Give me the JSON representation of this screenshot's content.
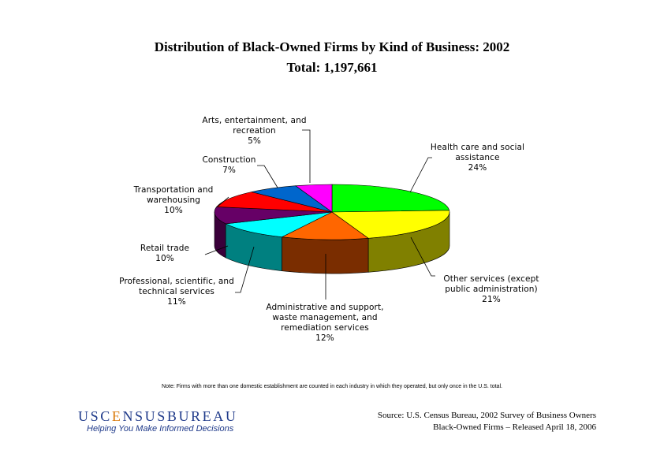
{
  "title_line1": "Distribution of Black-Owned Firms by Kind of Business: 2002",
  "title_line2": "Total:  1,197,661",
  "chart_data": {
    "type": "pie",
    "title": "Distribution of Black-Owned Firms by Kind of Business: 2002",
    "subtitle": "Total:  1,197,661",
    "slices": [
      {
        "label": "Health care and social assistance",
        "value": 24,
        "value_label": "24%",
        "color": "#00ff00",
        "side_color": "#00b000"
      },
      {
        "label": "Other services (except public administration)",
        "value": 21,
        "value_label": "21%",
        "color": "#ffff00",
        "side_color": "#808000"
      },
      {
        "label": "Administrative and support, waste management, and remediation services",
        "value": 12,
        "value_label": "12%",
        "color": "#ff6600",
        "side_color": "#7a2d00"
      },
      {
        "label": "Professional, scientific, and technical services",
        "value": 11,
        "value_label": "11%",
        "color": "#00ffff",
        "side_color": "#008080"
      },
      {
        "label": "Retail trade",
        "value": 10,
        "value_label": "10%",
        "color": "#660066",
        "side_color": "#3a003a"
      },
      {
        "label": "Transportation and warehousing",
        "value": 10,
        "value_label": "10%",
        "color": "#ff0000",
        "side_color": "#880000"
      },
      {
        "label": "Construction",
        "value": 7,
        "value_label": "7%",
        "color": "#0066cc",
        "side_color": "#003366"
      },
      {
        "label": "Arts, entertainment, and recreation",
        "value": 5,
        "value_label": "5%",
        "color": "#ff00ff",
        "side_color": "#880088"
      }
    ],
    "label_lines": [
      [
        "Health care and social",
        "assistance"
      ],
      [
        "Other services (except",
        "public administration)"
      ],
      [
        "Administrative and support,",
        "waste management, and",
        "remediation services"
      ],
      [
        "Professional, scientific, and",
        "technical services"
      ],
      [
        "Retail trade"
      ],
      [
        "Transportation and",
        "warehousing"
      ],
      [
        "Construction"
      ],
      [
        "Arts, entertainment, and",
        "recreation"
      ]
    ]
  },
  "note": "Note:  Firms with more than one domestic establishment are counted in each industry in which they operated, but only once in the U.S. total.",
  "source": {
    "line1": "Source:  U.S. Census Bureau, 2002 Survey of Business Owners",
    "line2": "Black-Owned Firms – Released April 18, 2006"
  },
  "logo": {
    "prefix": "USC",
    "o_letter": "E",
    "suffix": "NSUSBUREAU",
    "tagline": "Helping You Make Informed Decisions"
  }
}
